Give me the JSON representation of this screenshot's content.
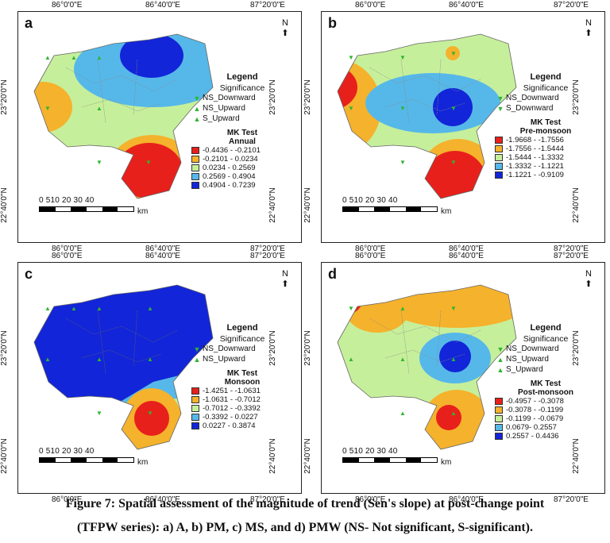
{
  "panels": [
    {
      "letter": "a",
      "ticks_top": [
        "86°0'0\"E",
        "86°40'0\"E",
        "87°20'0\"E"
      ],
      "ticks_bottom": [
        "86°0'0\"E",
        "86°40'0\"E",
        "87°20'0\"E"
      ],
      "ticks_left": [
        "23°20'0\"N",
        "22°40'0\"N"
      ],
      "ticks_right": [
        "23°20'0\"N",
        "22°40'0\"N"
      ],
      "legend_title": "Legend",
      "significance_label": "Significance",
      "sig_items": [
        {
          "sym": "▼",
          "label": "NS_Downward"
        },
        {
          "sym": "▲",
          "label": "NS_Upward"
        },
        {
          "sym": "▲",
          "label": "S_Upward"
        }
      ],
      "mk_title": "MK Test",
      "season": "Annual",
      "classes": [
        {
          "color": "#e8201b",
          "label": "-0.4436 - -0.2101"
        },
        {
          "color": "#f5b22c",
          "label": "-0.2101 - 0.0234"
        },
        {
          "color": "#c6ef9b",
          "label": "0.0234 - 0.2569"
        },
        {
          "color": "#56b8e9",
          "label": "0.2569 - 0.4904"
        },
        {
          "color": "#1225d8",
          "label": "0.4904 - 0.7239"
        }
      ]
    },
    {
      "letter": "b",
      "ticks_top": [
        "86°0'0\"E",
        "86°40'0\"E",
        "87°20'0\"E"
      ],
      "ticks_bottom": [
        "86°0'0\"E",
        "86°40'0\"E",
        "87°20'0\"E"
      ],
      "ticks_left": [
        "23°20'0\"N",
        "22°40'0\"N"
      ],
      "ticks_right": [
        "23°20'0\"N",
        "22°40'0\"N"
      ],
      "legend_title": "Legend",
      "significance_label": "Significance",
      "sig_items": [
        {
          "sym": "▼",
          "label": "NS_Downward"
        },
        {
          "sym": "▼",
          "label": "S_Downward"
        }
      ],
      "mk_title": "MK Test",
      "season": "Pre-monsoon",
      "classes": [
        {
          "color": "#e8201b",
          "label": "-1.9668 - -1.7556"
        },
        {
          "color": "#f5b22c",
          "label": "-1.7556 - -1.5444"
        },
        {
          "color": "#c6ef9b",
          "label": "-1.5444 - -1.3332"
        },
        {
          "color": "#56b8e9",
          "label": "-1.3332 - -1.1221"
        },
        {
          "color": "#1225d8",
          "label": "-1.1221 - -0.9109"
        }
      ]
    },
    {
      "letter": "c",
      "ticks_top": [
        "86°0'0\"E",
        "86°40'0\"E",
        "87°20'0\"E"
      ],
      "ticks_bottom": [
        "86°0'0\"E",
        "86°40'0\"E",
        "87°20'0\"E"
      ],
      "ticks_left": [
        "23°20'0\"N",
        "22°40'0\"N"
      ],
      "ticks_right": [
        "23°20'0\"N",
        "22°40'0\"N"
      ],
      "legend_title": "Legend",
      "significance_label": "Significance",
      "sig_items": [
        {
          "sym": "▼",
          "label": "NS_Downward"
        },
        {
          "sym": "▲",
          "label": "NS_Upward"
        }
      ],
      "mk_title": "MK Test",
      "season": "Monsoon",
      "classes": [
        {
          "color": "#e8201b",
          "label": "-1.4251 - -1.0631"
        },
        {
          "color": "#f5b22c",
          "label": "-1.0631 - -0.7012"
        },
        {
          "color": "#c6ef9b",
          "label": "-0.7012 - -0.3392"
        },
        {
          "color": "#56b8e9",
          "label": "-0.3392 - 0.0227"
        },
        {
          "color": "#1225d8",
          "label": "0.0227 - 0.3874"
        }
      ]
    },
    {
      "letter": "d",
      "ticks_top": [
        "86°0'0\"E",
        "86°40'0\"E",
        "87°20'0\"E"
      ],
      "ticks_bottom": [
        "86°0'0\"E",
        "86°40'0\"E",
        "87°20'0\"E"
      ],
      "ticks_left": [
        "23°20'0\"N",
        "22°40'0\"N"
      ],
      "ticks_right": [
        "23°20'0\"N",
        "22°40'0\"N"
      ],
      "legend_title": "Legend",
      "significance_label": "Significance",
      "sig_items": [
        {
          "sym": "▼",
          "label": "NS_Downward"
        },
        {
          "sym": "▲",
          "label": "NS_Upward"
        },
        {
          "sym": "▲",
          "label": "S_Upward"
        }
      ],
      "mk_title": "MK Test",
      "season": "Post-monsoon",
      "classes": [
        {
          "color": "#e8201b",
          "label": "-0.4957 - -0.3078"
        },
        {
          "color": "#f5b22c",
          "label": "-0.3078 - -0.1199"
        },
        {
          "color": "#c6ef9b",
          "label": "-0.1199 - -0.0679"
        },
        {
          "color": "#56b8e9",
          "label": "0.0679- 0.2557"
        },
        {
          "color": "#1225d8",
          "label": "0.2557 - 0.4436"
        }
      ]
    }
  ],
  "scale_numbers": "0 510  20   30   40",
  "scale_unit": "km",
  "north_label": "N",
  "caption_line1": "Figure 7: Spatial assessment of the magnitude of trend (Sen's slope) at post-change point",
  "caption_line2": "(TFPW series): a) A, b) PM, c) MS, and d) PMW (NS- Not significant, S-significant)."
}
